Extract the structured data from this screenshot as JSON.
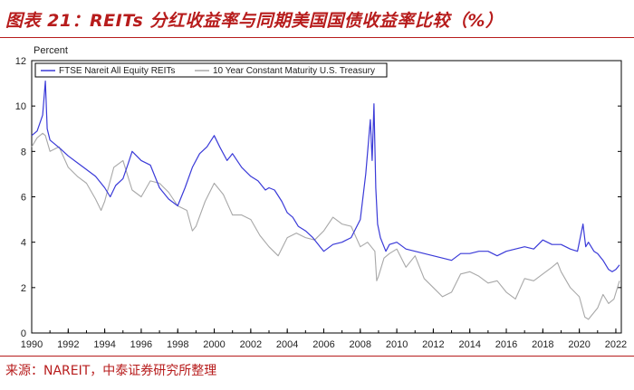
{
  "figure": {
    "title": "图表 21：REITs 分红收益率与同期美国国债收益率比较（%）",
    "source": "来源：NAREIT，中泰证券研究所整理"
  },
  "colors": {
    "accent": "#b71c1c",
    "reit_series": "#3a3ad8",
    "treasury_series": "#a8a8a8"
  },
  "chart_data": {
    "type": "line",
    "title": "",
    "xlabel": "",
    "ylabel": "Percent",
    "xlim": [
      1990,
      2022.3
    ],
    "ylim": [
      0,
      12
    ],
    "xticks": [
      "1990",
      "1992",
      "1994",
      "1996",
      "1998",
      "2000",
      "2002",
      "2004",
      "2006",
      "2008",
      "2010",
      "2012",
      "2014",
      "2016",
      "2018",
      "2020",
      "2022"
    ],
    "yticks": [
      "0",
      "2",
      "4",
      "6",
      "8",
      "10",
      "12"
    ],
    "grid": false,
    "legend_position": "top-left",
    "series": [
      {
        "name": "FTSE Nareit All Equity REITs",
        "x": [
          1990.0,
          1990.3,
          1990.6,
          1990.75,
          1990.85,
          1991.0,
          1991.3,
          1991.6,
          1992.0,
          1992.5,
          1993.0,
          1993.5,
          1994.0,
          1994.3,
          1994.6,
          1995.0,
          1995.3,
          1995.5,
          1996.0,
          1996.5,
          1997.0,
          1997.5,
          1998.0,
          1998.4,
          1998.8,
          1999.2,
          1999.6,
          2000.0,
          2000.3,
          2000.7,
          2001.0,
          2001.5,
          2002.0,
          2002.4,
          2002.8,
          2003.0,
          2003.3,
          2003.7,
          2004.0,
          2004.3,
          2004.6,
          2005.0,
          2005.4,
          2005.8,
          2006.0,
          2006.5,
          2007.0,
          2007.5,
          2008.0,
          2008.3,
          2008.55,
          2008.65,
          2008.75,
          2008.85,
          2008.95,
          2009.1,
          2009.25,
          2009.4,
          2009.6,
          2010.0,
          2010.5,
          2011.0,
          2011.5,
          2012.0,
          2012.5,
          2013.0,
          2013.5,
          2014.0,
          2014.5,
          2015.0,
          2015.5,
          2016.0,
          2016.5,
          2017.0,
          2017.5,
          2018.0,
          2018.5,
          2019.0,
          2019.5,
          2019.9,
          2020.2,
          2020.35,
          2020.5,
          2020.8,
          2021.0,
          2021.3,
          2021.6,
          2021.8,
          2022.0,
          2022.2
        ],
        "y": [
          8.7,
          8.9,
          9.6,
          11.1,
          9.0,
          8.5,
          8.3,
          8.1,
          7.8,
          7.5,
          7.2,
          6.9,
          6.4,
          6.0,
          6.5,
          6.8,
          7.5,
          8.0,
          7.6,
          7.4,
          6.4,
          5.9,
          5.6,
          6.4,
          7.3,
          7.9,
          8.2,
          8.7,
          8.2,
          7.6,
          7.9,
          7.3,
          6.9,
          6.7,
          6.3,
          6.4,
          6.3,
          5.8,
          5.3,
          5.1,
          4.7,
          4.5,
          4.2,
          3.8,
          3.6,
          3.9,
          4.0,
          4.2,
          5.0,
          7.0,
          9.4,
          7.6,
          10.1,
          6.4,
          4.8,
          4.2,
          3.9,
          3.6,
          3.9,
          4.0,
          3.7,
          3.6,
          3.5,
          3.4,
          3.3,
          3.2,
          3.5,
          3.5,
          3.6,
          3.6,
          3.4,
          3.6,
          3.7,
          3.8,
          3.7,
          4.1,
          3.9,
          3.9,
          3.7,
          3.6,
          4.8,
          3.8,
          4.0,
          3.6,
          3.5,
          3.2,
          2.8,
          2.7,
          2.8,
          3.0
        ]
      },
      {
        "name": "10 Year Constant Maturity U.S. Treasury",
        "x": [
          1990.0,
          1990.3,
          1990.6,
          1990.75,
          1991.0,
          1991.5,
          1992.0,
          1992.5,
          1993.0,
          1993.5,
          1993.8,
          1994.0,
          1994.5,
          1995.0,
          1995.5,
          1996.0,
          1996.5,
          1997.0,
          1997.5,
          1998.0,
          1998.5,
          1998.8,
          1999.0,
          1999.5,
          2000.0,
          2000.5,
          2001.0,
          2001.5,
          2002.0,
          2002.5,
          2003.0,
          2003.5,
          2004.0,
          2004.5,
          2005.0,
          2005.5,
          2006.0,
          2006.5,
          2007.0,
          2007.5,
          2008.0,
          2008.4,
          2008.8,
          2008.9,
          2009.0,
          2009.3,
          2009.6,
          2010.0,
          2010.5,
          2011.0,
          2011.5,
          2012.0,
          2012.5,
          2013.0,
          2013.5,
          2014.0,
          2014.5,
          2015.0,
          2015.5,
          2016.0,
          2016.5,
          2017.0,
          2017.5,
          2018.0,
          2018.5,
          2018.8,
          2019.0,
          2019.5,
          2020.0,
          2020.3,
          2020.5,
          2021.0,
          2021.3,
          2021.6,
          2021.9,
          2022.2
        ],
        "y": [
          8.2,
          8.6,
          8.8,
          8.7,
          8.0,
          8.2,
          7.3,
          6.9,
          6.6,
          5.9,
          5.4,
          5.8,
          7.3,
          7.6,
          6.3,
          6.0,
          6.7,
          6.6,
          6.2,
          5.6,
          5.4,
          4.5,
          4.7,
          5.8,
          6.6,
          6.1,
          5.2,
          5.2,
          5.0,
          4.3,
          3.8,
          3.4,
          4.2,
          4.4,
          4.2,
          4.1,
          4.5,
          5.1,
          4.8,
          4.7,
          3.8,
          4.0,
          3.6,
          2.3,
          2.5,
          3.3,
          3.5,
          3.7,
          2.9,
          3.4,
          2.4,
          2.0,
          1.6,
          1.8,
          2.6,
          2.7,
          2.5,
          2.2,
          2.3,
          1.8,
          1.5,
          2.4,
          2.3,
          2.6,
          2.9,
          3.1,
          2.7,
          2.0,
          1.6,
          0.7,
          0.6,
          1.1,
          1.7,
          1.3,
          1.5,
          2.3
        ]
      }
    ]
  }
}
